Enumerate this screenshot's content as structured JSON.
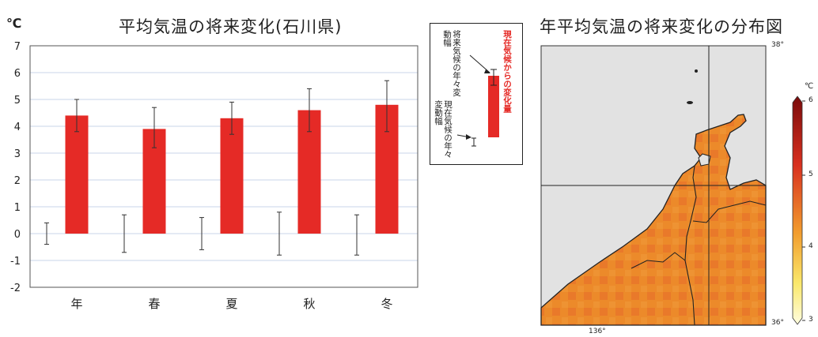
{
  "unit": "℃",
  "colors": {
    "bar": "#e52a26",
    "grid": "#c9d4ea",
    "map_land": "#ec8a2a",
    "map_sea": "#e2e2e2"
  },
  "chart_data": {
    "type": "bar",
    "title": "平均気温の将来変化(石川県)",
    "ylabel": "℃",
    "xlabel": "",
    "categories": [
      "年",
      "春",
      "夏",
      "秋",
      "冬"
    ],
    "ylim": [
      -2,
      7
    ],
    "yticks": [
      -2,
      -1,
      0,
      1,
      2,
      3,
      4,
      5,
      6,
      7
    ],
    "grid": true,
    "series": [
      {
        "values": [
          4.4,
          3.9,
          4.3,
          4.6,
          4.8
        ],
        "error_low": [
          3.8,
          3.2,
          3.7,
          3.8,
          3.8
        ],
        "error_high": [
          5.0,
          4.7,
          4.9,
          5.4,
          5.7
        ]
      },
      {
        "values": [
          0,
          0,
          0,
          0,
          0
        ],
        "error_low": [
          -0.4,
          -0.7,
          -0.6,
          -0.8,
          -0.8
        ],
        "error_high": [
          0.4,
          0.7,
          0.6,
          0.8,
          0.7
        ]
      }
    ]
  },
  "legend": {
    "change_label": "現在気候からの変化量",
    "future_var_label": "将来気候の年々変動幅",
    "present_var_label": "現在気候の年々変動幅"
  },
  "map": {
    "title": "年平均気温の将来変化の分布図",
    "lat_labels": [
      "38°",
      "36°"
    ],
    "lon_label": "136°",
    "colorbar_unit": "℃",
    "colorbar_ticks": [
      "6",
      "5",
      "4",
      "3"
    ]
  }
}
